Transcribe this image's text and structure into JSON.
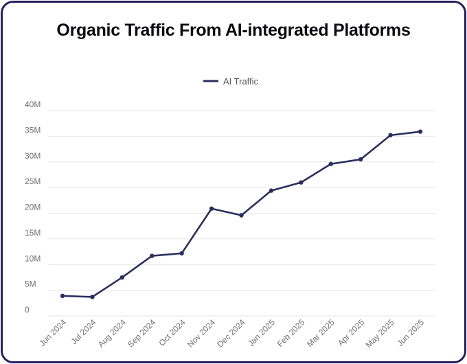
{
  "title": "Organic Traffic From AI-integrated Platforms",
  "colors": {
    "line": "#2a2f5e",
    "grid": "#e6e6e6",
    "frame": "#2b1f5c",
    "text": "#6f6f6f"
  },
  "chart_data": {
    "type": "line",
    "title": "Organic Traffic From AI-integrated Platforms",
    "xlabel": "",
    "ylabel": "",
    "categories": [
      "Jun 2024",
      "Jul 2024",
      "Aug 2024",
      "Sep 2024",
      "Oct 2024",
      "Nov 2024",
      "Dec 2024",
      "Jan 2025",
      "Feb 2025",
      "Mar 2025",
      "Apr 2025",
      "May 2025",
      "Jun 2025"
    ],
    "series": [
      {
        "name": "AI Traffic",
        "values": [
          3.9,
          3.7,
          7.5,
          11.7,
          12.2,
          20.9,
          19.6,
          24.4,
          26.0,
          29.6,
          30.5,
          35.2,
          35.9
        ]
      }
    ],
    "ylim": [
      0,
      40
    ],
    "yticks": [
      0,
      5,
      10,
      15,
      20,
      25,
      30,
      35,
      40
    ],
    "ytick_labels": [
      "0",
      "5M",
      "10M",
      "15M",
      "20M",
      "25M",
      "30M",
      "35M",
      "40M"
    ],
    "grid": true,
    "legend_position": "top-center"
  }
}
